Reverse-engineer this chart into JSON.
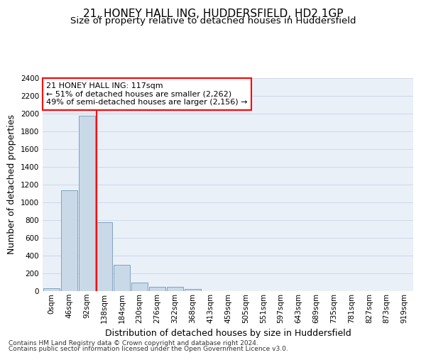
{
  "title_line1": "21, HONEY HALL ING, HUDDERSFIELD, HD2 1GP",
  "title_line2": "Size of property relative to detached houses in Huddersfield",
  "xlabel": "Distribution of detached houses by size in Huddersfield",
  "ylabel": "Number of detached properties",
  "footnote1": "Contains HM Land Registry data © Crown copyright and database right 2024.",
  "footnote2": "Contains public sector information licensed under the Open Government Licence v3.0.",
  "bar_labels": [
    "0sqm",
    "46sqm",
    "92sqm",
    "138sqm",
    "184sqm",
    "230sqm",
    "276sqm",
    "322sqm",
    "368sqm",
    "413sqm",
    "459sqm",
    "505sqm",
    "551sqm",
    "597sqm",
    "643sqm",
    "689sqm",
    "735sqm",
    "781sqm",
    "827sqm",
    "873sqm",
    "919sqm"
  ],
  "bar_values": [
    35,
    1140,
    1980,
    775,
    295,
    100,
    50,
    45,
    28,
    0,
    0,
    0,
    0,
    0,
    0,
    0,
    0,
    0,
    0,
    0,
    0
  ],
  "bar_color": "#c9d9e8",
  "bar_edge_color": "#7098b8",
  "vline_x": 2.55,
  "vline_color": "red",
  "annotation_text": "21 HONEY HALL ING: 117sqm\n← 51% of detached houses are smaller (2,262)\n49% of semi-detached houses are larger (2,156) →",
  "annotation_box_color": "white",
  "annotation_box_edge_color": "red",
  "ylim": [
    0,
    2400
  ],
  "yticks": [
    0,
    200,
    400,
    600,
    800,
    1000,
    1200,
    1400,
    1600,
    1800,
    2000,
    2200,
    2400
  ],
  "grid_color": "#d0d8e8",
  "bg_color": "#eaf0f8",
  "title_fontsize": 11,
  "subtitle_fontsize": 9.5,
  "axis_label_fontsize": 9,
  "tick_fontsize": 7.5,
  "annotation_fontsize": 8,
  "footnote_fontsize": 6.5
}
